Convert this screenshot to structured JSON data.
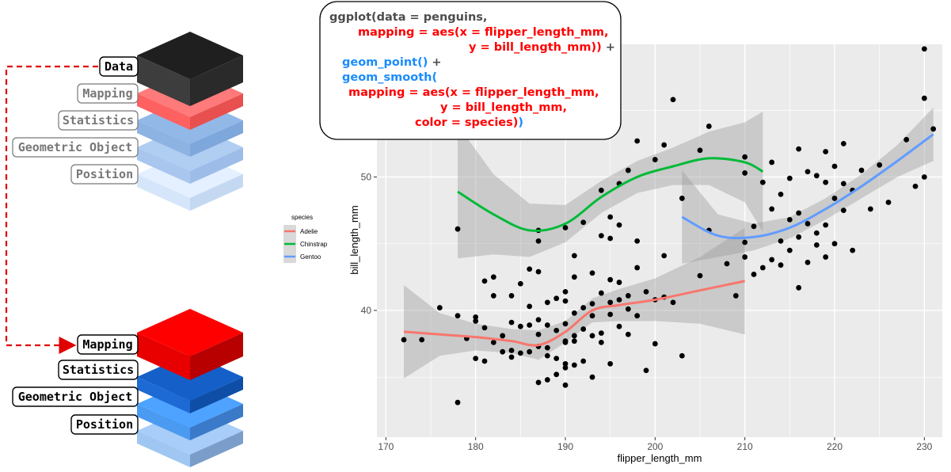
{
  "layers_top": {
    "labels": [
      "Data",
      "Mapping",
      "Statistics",
      "Geometric Object",
      "Position"
    ]
  },
  "layers_bottom": {
    "labels": [
      "Mapping",
      "Statistics",
      "Geometric Object",
      "Position"
    ]
  },
  "code": {
    "lines": [
      {
        "text": "ggplot(data = penguins,",
        "color": "#4d4d4d"
      },
      {
        "text": "mapping = aes(x = flipper_length_mm,",
        "color": "#ff0000"
      },
      {
        "text": "y = bill_length_mm)) +",
        "color": "#ff0000",
        "tail": "+"
      },
      {
        "text": "geom_point() +",
        "color": "#1a8cff"
      },
      {
        "text": "geom_smooth(",
        "color": "#1a8cff"
      },
      {
        "text": "mapping = aes(x = flipper_length_mm,",
        "color": "#ff0000"
      },
      {
        "text": "y = bill_length_mm,",
        "color": "#ff0000"
      },
      {
        "text": "color = species))",
        "color": "#ff0000"
      }
    ]
  },
  "legend": {
    "title": "species",
    "items": [
      {
        "label": "Adelie",
        "color": "#f8766d"
      },
      {
        "label": "Chinstrap",
        "color": "#00ba38"
      },
      {
        "label": "Gentoo",
        "color": "#619cff"
      }
    ]
  },
  "chart_data": {
    "type": "scatter",
    "xlabel": "flipper_length_mm",
    "ylabel": "bill_length_mm",
    "x_ticks": [
      170,
      180,
      190,
      200,
      210,
      220,
      230
    ],
    "y_ticks": [
      40,
      50
    ],
    "xlim": [
      169,
      232
    ],
    "ylim": [
      30.5,
      60
    ],
    "grid": true,
    "points": [
      [
        172,
        37.8
      ],
      [
        174,
        37.8
      ],
      [
        176,
        40.2
      ],
      [
        178,
        46.1
      ],
      [
        178,
        33.1
      ],
      [
        178,
        39.6
      ],
      [
        179,
        37.9
      ],
      [
        180,
        39.5
      ],
      [
        180,
        36.4
      ],
      [
        180,
        39.2
      ],
      [
        181,
        38.7
      ],
      [
        181,
        42.2
      ],
      [
        181,
        36.2
      ],
      [
        182,
        41.1
      ],
      [
        182,
        37.6
      ],
      [
        182,
        42.5
      ],
      [
        183,
        38.1
      ],
      [
        183,
        36.9
      ],
      [
        184,
        37.0
      ],
      [
        184,
        39.1
      ],
      [
        184,
        36.5
      ],
      [
        184,
        41.1
      ],
      [
        185,
        38.8
      ],
      [
        185,
        36.8
      ],
      [
        185,
        42.0
      ],
      [
        186,
        36.9
      ],
      [
        186,
        38.9
      ],
      [
        186,
        43.1
      ],
      [
        186,
        40.3
      ],
      [
        187,
        37.3
      ],
      [
        187,
        34.6
      ],
      [
        187,
        38.2
      ],
      [
        187,
        42.9
      ],
      [
        187,
        46.0
      ],
      [
        187,
        45.2
      ],
      [
        187,
        39.3
      ],
      [
        188,
        36.6
      ],
      [
        188,
        40.6
      ],
      [
        188,
        37.2
      ],
      [
        188,
        34.8
      ],
      [
        188,
        38.9
      ],
      [
        189,
        35.2
      ],
      [
        189,
        40.9
      ],
      [
        189,
        36.4
      ],
      [
        189,
        38.5
      ],
      [
        190,
        37.7
      ],
      [
        190,
        34.4
      ],
      [
        190,
        39.0
      ],
      [
        190,
        41.4
      ],
      [
        190,
        35.7
      ],
      [
        190,
        40.7
      ],
      [
        190,
        46.2
      ],
      [
        190,
        37.6
      ],
      [
        190,
        36.0
      ],
      [
        191,
        38.1
      ],
      [
        191,
        35.9
      ],
      [
        191,
        42.5
      ],
      [
        191,
        44.1
      ],
      [
        191,
        37.7
      ],
      [
        191,
        39.8
      ],
      [
        192,
        40.2
      ],
      [
        192,
        38.6
      ],
      [
        192,
        46.6
      ],
      [
        192,
        36.2
      ],
      [
        193,
        39.6
      ],
      [
        193,
        42.8
      ],
      [
        193,
        38.1
      ],
      [
        193,
        35.0
      ],
      [
        193,
        40.5
      ],
      [
        194,
        41.3
      ],
      [
        194,
        37.6
      ],
      [
        194,
        45.6
      ],
      [
        194,
        38.3
      ],
      [
        195,
        39.7
      ],
      [
        195,
        42.3
      ],
      [
        195,
        40.6
      ],
      [
        195,
        36.0
      ],
      [
        195,
        45.4
      ],
      [
        195,
        47.0
      ],
      [
        196,
        38.8
      ],
      [
        196,
        42.1
      ],
      [
        196,
        40.8
      ],
      [
        196,
        49.5
      ],
      [
        196,
        46.4
      ],
      [
        197,
        41.1
      ],
      [
        197,
        40.1
      ],
      [
        197,
        50.5
      ],
      [
        197,
        38.2
      ],
      [
        198,
        39.6
      ],
      [
        198,
        43.2
      ],
      [
        198,
        45.2
      ],
      [
        199,
        41.4
      ],
      [
        199,
        35.5
      ],
      [
        200,
        40.8
      ],
      [
        200,
        37.5
      ],
      [
        200,
        51.3
      ],
      [
        201,
        44.1
      ],
      [
        201,
        41.0
      ],
      [
        202,
        40.6
      ],
      [
        202,
        55.8
      ],
      [
        203,
        36.6
      ],
      [
        203,
        48.4
      ],
      [
        205,
        42.6
      ],
      [
        205,
        52.0
      ],
      [
        206,
        46.0
      ],
      [
        208,
        43.5
      ],
      [
        209,
        41.1
      ],
      [
        210,
        44.0
      ],
      [
        210,
        50.3
      ],
      [
        210,
        45.1
      ],
      [
        211,
        46.3
      ],
      [
        211,
        42.7
      ],
      [
        212,
        43.2
      ],
      [
        212,
        49.6
      ],
      [
        213,
        43.8
      ],
      [
        213,
        47.6
      ],
      [
        214,
        48.7
      ],
      [
        214,
        45.2
      ],
      [
        214,
        43.4
      ],
      [
        215,
        46.8
      ],
      [
        215,
        49.9
      ],
      [
        215,
        44.5
      ],
      [
        216,
        45.5
      ],
      [
        216,
        47.3
      ],
      [
        216,
        41.7
      ],
      [
        217,
        43.6
      ],
      [
        217,
        50.4
      ],
      [
        217,
        46.5
      ],
      [
        218,
        44.9
      ],
      [
        218,
        50.1
      ],
      [
        218,
        45.8
      ],
      [
        219,
        46.4
      ],
      [
        219,
        49.6
      ],
      [
        219,
        44.0
      ],
      [
        220,
        48.4
      ],
      [
        220,
        45.0
      ],
      [
        220,
        50.8
      ],
      [
        221,
        47.5
      ],
      [
        221,
        49.5
      ],
      [
        222,
        49.0
      ],
      [
        222,
        44.5
      ],
      [
        223,
        50.5
      ],
      [
        224,
        47.6
      ],
      [
        225,
        50.9
      ],
      [
        226,
        48.1
      ],
      [
        228,
        52.8
      ],
      [
        229,
        49.3
      ],
      [
        230,
        59.6
      ],
      [
        230,
        50.0
      ],
      [
        230,
        55.9
      ],
      [
        231,
        53.6
      ],
      [
        194,
        49.0
      ],
      [
        198,
        52.7
      ],
      [
        201,
        52.4
      ],
      [
        206,
        53.8
      ],
      [
        210,
        51.5
      ],
      [
        213,
        51.1
      ],
      [
        216,
        52.1
      ],
      [
        219,
        51.9
      ],
      [
        221,
        52.5
      ]
    ],
    "series": [
      {
        "name": "Adelie",
        "x": [
          172,
          176,
          180,
          184,
          187,
          190,
          193,
          196,
          200,
          205,
          210
        ],
        "y": [
          38.4,
          38.2,
          38.0,
          37.7,
          37.4,
          38.4,
          40.0,
          40.4,
          40.8,
          41.5,
          42.2
        ]
      },
      {
        "name": "Chinstrap",
        "x": [
          178,
          182,
          186,
          190,
          194,
          198,
          202,
          206,
          210,
          212
        ],
        "y": [
          48.9,
          47.2,
          46.0,
          46.5,
          48.5,
          50.0,
          50.8,
          51.4,
          51.1,
          50.4
        ]
      },
      {
        "name": "Gentoo",
        "x": [
          203,
          207,
          211,
          215,
          219,
          223,
          227,
          231
        ],
        "y": [
          47.0,
          45.6,
          45.5,
          46.2,
          47.6,
          49.3,
          51.2,
          53.2
        ]
      }
    ]
  }
}
